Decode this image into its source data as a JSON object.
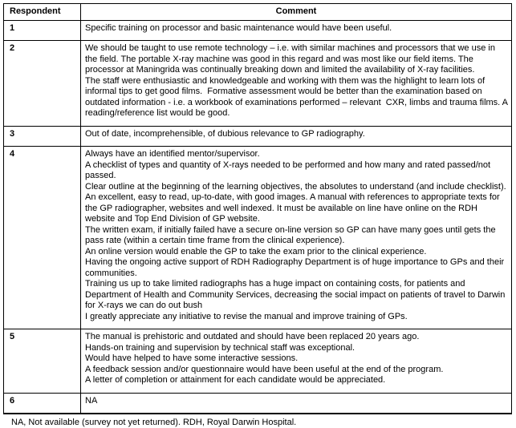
{
  "table": {
    "headers": [
      "Respondent",
      "Comment"
    ],
    "rows": [
      {
        "respondent": "1",
        "comment_paragraphs": [
          "Specific training on processor and basic maintenance would have been useful."
        ]
      },
      {
        "respondent": "2",
        "comment_paragraphs": [
          "We should be taught to use remote technology – i.e. with similar machines and processors that we use in the field. The portable X-ray machine was good in this regard and was most like our field items. The processor at Maningrida was continually breaking down and limited the availability of X-ray facilities.",
          "The staff were enthusiastic and knowledgeable and working with them was the highlight to learn lots of informal tips to get good films.  Formative assessment would be better than the examination based on outdated information - i.e. a workbook of examinations performed – relevant  CXR, limbs and trauma films. A reading/reference list would be good."
        ]
      },
      {
        "respondent": "3",
        "comment_paragraphs": [
          "Out of date, incomprehensible, of dubious relevance to GP radiography."
        ]
      },
      {
        "respondent": "4",
        "comment_paragraphs": [
          "Always have an identified mentor/supervisor.",
          "A checklist of types and quantity of X-rays needed to be performed and how many and rated passed/not passed.",
          "Clear outline at the beginning of the learning objectives, the absolutes to understand (and include checklist). An excellent, easy to read, up-to-date, with good images. A manual with references to appropriate texts for the GP radiographer, websites and well indexed. It must be available on line have online on the RDH website and Top End Division of GP website.",
          "The written exam, if initially failed have a secure on-line version so GP can have many goes until gets the pass rate (within a certain time frame from the clinical experience).",
          "An online version would enable the GP to take the exam prior to the clinical experience.",
          "Having the ongoing active support of RDH Radiography Department is of huge importance to GPs and their communities.",
          "Training us up to take limited radiographs has a huge impact on containing costs, for patients and Department of Health and Community Services, decreasing the social impact on patients of travel to Darwin for X-rays we can do out bush",
          "I greatly appreciate any initiative to revise the manual and improve training of GPs."
        ]
      },
      {
        "respondent": "5",
        "comment_paragraphs": [
          "The manual is prehistoric and outdated and should have been replaced 20 years ago.",
          "Hands-on training and supervision by technical staff was exceptional.",
          "Would have helped to have some interactive sessions.",
          "A feedback session and/or questionnaire would have been useful at the end of the program.",
          "A letter of completion or attainment for each candidate would be appreciated."
        ]
      },
      {
        "respondent": "6",
        "comment_paragraphs": [
          "NA"
        ]
      }
    ]
  },
  "footnote": "NA, Not available (survey not yet returned). RDH, Royal Darwin Hospital.",
  "colors": {
    "text": "#000000",
    "border": "#000000",
    "background": "#ffffff"
  }
}
